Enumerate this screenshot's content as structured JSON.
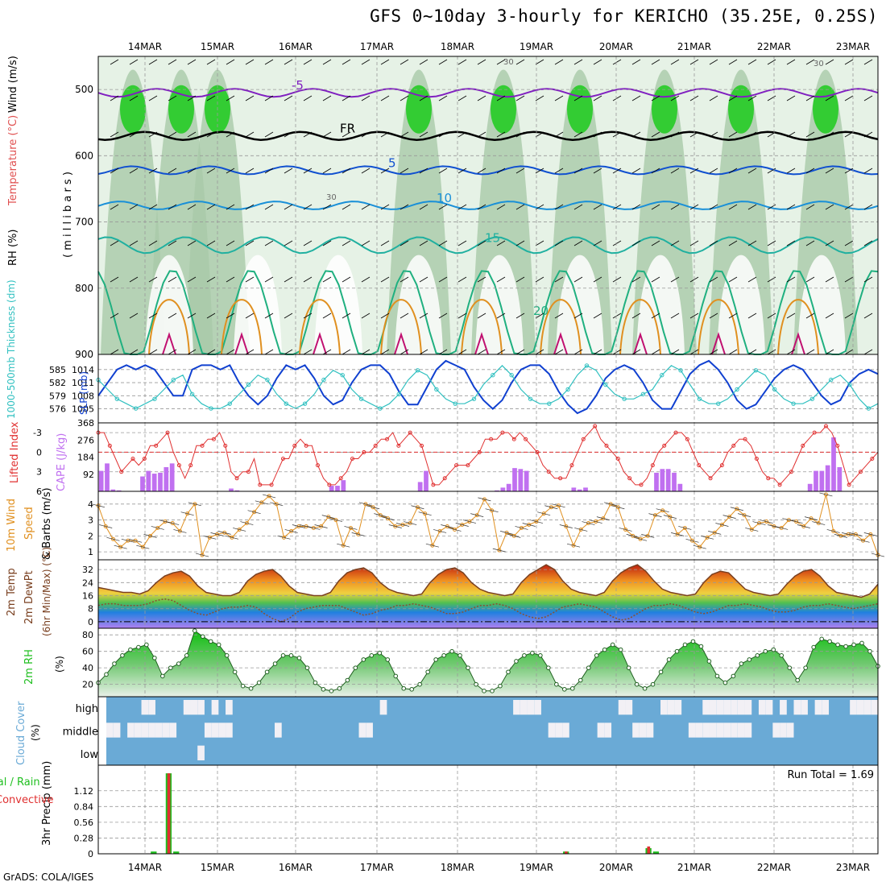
{
  "title": "GFS 0~10day 3-hourly for KERICHO (35.25E, 0.25S)",
  "footer": "GrADS: COLA/IGES",
  "dates": [
    "14MAR",
    "15MAR",
    "16MAR",
    "17MAR",
    "18MAR",
    "19MAR",
    "20MAR",
    "21MAR",
    "22MAR",
    "23MAR"
  ],
  "colors": {
    "rh": "#1fbf1f",
    "temp": "#e05050",
    "cloud": "#6aaad6",
    "precip_total": "#1fbf1f",
    "precip_conv": "#e03030",
    "cape": "#c070f0",
    "li": "#e03030",
    "slp": "#1040d0",
    "thick": "#30c0c0",
    "wind": "#e09020"
  },
  "chart_data": [
    {
      "type": "contour",
      "name": "upper-air",
      "ylabel_parts": [
        "RH (%)",
        "Temperature (°C)",
        "Wind (m/s)"
      ],
      "ylabel_right": "( m i l l i b a r s )",
      "yticks": [
        500,
        600,
        700,
        800,
        900
      ],
      "ylim": [
        450,
        900
      ],
      "temperature_contours": [
        {
          "label": "-5",
          "level_mb": 505
        },
        {
          "label": "FR",
          "level_mb": 570
        },
        {
          "label": "5",
          "level_mb": 622
        },
        {
          "label": "10",
          "level_mb": 675
        },
        {
          "label": "15",
          "level_mb": 735
        },
        {
          "label": "20",
          "level_mb": 845
        }
      ],
      "rh_labels": [
        "30",
        "30",
        "30"
      ]
    },
    {
      "type": "line",
      "name": "thickness-slp",
      "ylabel_left": "1000-500mb Thickness (dm)",
      "ylabel_right": "SLP (mb)",
      "yticks_left": [
        585,
        582,
        579,
        576
      ],
      "yticks_right": [
        1014,
        1011,
        1008,
        1005
      ],
      "series": [
        {
          "name": "SLP",
          "values": [
            1008,
            1011,
            1014,
            1015,
            1014,
            1015,
            1014,
            1011,
            1008,
            1008,
            1014,
            1015,
            1015,
            1014,
            1015,
            1011,
            1008,
            1006,
            1008,
            1012,
            1015,
            1014,
            1015,
            1012,
            1008,
            1006,
            1007,
            1011,
            1014,
            1015,
            1015,
            1013,
            1009,
            1006,
            1006,
            1010,
            1014,
            1016,
            1015,
            1014,
            1010,
            1007,
            1005,
            1007,
            1011,
            1014,
            1015,
            1015,
            1013,
            1009,
            1006,
            1004,
            1005,
            1008,
            1012,
            1014,
            1015,
            1014,
            1011,
            1007,
            1005,
            1005,
            1009,
            1013,
            1015,
            1016,
            1014,
            1011,
            1007,
            1005,
            1006,
            1009,
            1012,
            1014,
            1015,
            1014,
            1011,
            1008,
            1006,
            1007,
            1011,
            1013,
            1014,
            1013
          ]
        },
        {
          "name": "Thickness",
          "values": [
            582,
            580,
            578,
            577,
            576,
            577,
            578,
            580,
            582,
            583,
            579,
            577,
            576,
            576,
            577,
            579,
            581,
            583,
            582,
            579,
            577,
            576,
            577,
            579,
            582,
            584,
            583,
            580,
            578,
            577,
            576,
            577,
            579,
            582,
            584,
            583,
            580,
            578,
            577,
            577,
            578,
            581,
            583,
            585,
            583,
            580,
            578,
            577,
            577,
            578,
            580,
            583,
            585,
            584,
            581,
            579,
            578,
            578,
            579,
            580,
            583,
            585,
            584,
            581,
            578,
            577,
            577,
            578,
            580,
            582,
            584,
            583,
            580,
            578,
            577,
            577,
            578,
            580,
            582,
            583,
            581,
            578,
            576,
            577
          ]
        }
      ]
    },
    {
      "type": "bar",
      "name": "lifted-index-cape",
      "ylabel_left": "Lifted Index",
      "ylabel_right": "CAPE (J/kg)",
      "yticks_left": [
        -3,
        0,
        3,
        6
      ],
      "yticks_right": [
        368,
        276,
        184,
        92
      ],
      "cape": [
        110,
        150,
        10,
        5,
        0,
        0,
        0,
        80,
        110,
        95,
        100,
        130,
        150,
        0,
        0,
        0,
        0,
        0,
        0,
        0,
        0,
        0,
        15,
        5,
        0,
        0,
        0,
        0,
        0,
        0,
        0,
        0,
        0,
        0,
        0,
        0,
        0,
        0,
        0,
        30,
        30,
        60,
        0,
        0,
        0,
        0,
        0,
        0,
        0,
        0,
        0,
        0,
        0,
        0,
        50,
        110,
        0,
        0,
        0,
        0,
        0,
        0,
        0,
        0,
        0,
        0,
        0,
        5,
        20,
        40,
        125,
        120,
        110,
        0,
        0,
        0,
        0,
        0,
        0,
        0,
        20,
        10,
        20,
        0,
        0,
        0,
        0,
        0,
        0,
        0,
        0,
        0,
        0,
        0,
        100,
        120,
        120,
        100,
        40,
        0,
        0,
        0,
        0,
        0,
        0,
        0,
        0,
        0,
        0,
        0,
        0,
        0,
        0,
        0,
        0,
        0,
        0,
        0,
        0,
        0,
        40,
        110,
        110,
        140,
        290,
        130,
        0,
        0,
        0,
        0,
        0,
        0
      ],
      "lifted_index": [
        -3,
        -3,
        -1,
        1,
        3,
        2,
        1,
        2,
        1,
        -1,
        -1,
        -2,
        -3,
        0,
        2,
        4,
        2,
        -1,
        -1,
        -2,
        -2,
        -3,
        -1,
        3,
        4,
        3,
        3,
        1,
        5,
        5,
        5,
        3,
        1,
        1,
        -1,
        -2,
        -1,
        -1,
        2,
        4,
        5,
        5,
        4,
        3,
        1,
        1,
        0,
        0,
        -1,
        -2,
        -2,
        -3,
        -1,
        -2,
        -3,
        -2,
        -1,
        2,
        5,
        5,
        4,
        3,
        2,
        2,
        2,
        1,
        0,
        -2,
        -2,
        -2,
        -3,
        -3,
        -2,
        -3,
        -2,
        -1,
        0,
        2,
        3,
        4,
        4,
        4,
        2,
        0,
        -2,
        -3,
        -4,
        -2,
        -1,
        0,
        1,
        3,
        4,
        5,
        5,
        4,
        2,
        0,
        -1,
        -2,
        -3,
        -3,
        -2,
        0,
        2,
        3,
        4,
        3,
        2,
        0,
        -1,
        -2,
        -2,
        -1,
        1,
        3,
        4,
        4,
        5,
        4,
        3,
        1,
        -1,
        -2,
        -3,
        -3,
        -4,
        -3,
        -1,
        2,
        5,
        4,
        3,
        2,
        1,
        0
      ]
    },
    {
      "type": "line",
      "name": "10m-wind",
      "ylabel_parts": [
        "10m Wind",
        "Speed",
        "& Barbs (m/s)"
      ],
      "yticks": [
        1,
        2,
        3,
        4
      ],
      "ylim": [
        0.5,
        4.8
      ],
      "values": [
        3.9,
        2.6,
        1.8,
        1.3,
        1.7,
        1.7,
        1.3,
        2.0,
        2.5,
        2.9,
        2.8,
        2.3,
        3.4,
        4.0,
        0.8,
        1.9,
        2.1,
        2.2,
        1.9,
        2.4,
        2.8,
        3.5,
        4.1,
        4.5,
        4.0,
        1.9,
        2.3,
        2.6,
        2.6,
        2.5,
        2.6,
        3.2,
        3.0,
        1.4,
        2.5,
        2.1,
        4.0,
        3.8,
        3.3,
        3.1,
        2.6,
        2.7,
        2.8,
        3.8,
        3.4,
        1.4,
        2.3,
        2.6,
        2.4,
        2.7,
        2.9,
        3.3,
        4.3,
        3.6,
        1.1,
        2.2,
        2.0,
        2.5,
        2.7,
        2.9,
        3.4,
        3.8,
        3.9,
        2.6,
        1.4,
        2.4,
        2.8,
        2.9,
        3.1,
        4.0,
        3.8,
        2.4,
        2.0,
        1.8,
        2.0,
        3.3,
        3.6,
        3.2,
        2.1,
        2.5,
        1.7,
        1.3,
        1.9,
        2.2,
        2.7,
        3.2,
        3.7,
        3.3,
        2.4,
        2.8,
        2.9,
        2.6,
        2.5,
        3.0,
        2.9,
        2.6,
        3.1,
        2.8,
        4.6,
        2.3,
        2.0,
        2.1,
        2.1,
        1.7,
        2.1,
        0.8
      ]
    },
    {
      "type": "area",
      "name": "2m-temp-dewpt",
      "ylabel_parts": [
        "2m Temp",
        "2m DewPt",
        "(6hr Min/Max) (°C)"
      ],
      "yticks": [
        0,
        8,
        16,
        24,
        32
      ],
      "ylim": [
        -4,
        38
      ],
      "temp": [
        21,
        20,
        19,
        18,
        18,
        17,
        19,
        24,
        28,
        30,
        31,
        28,
        22,
        18,
        17,
        16,
        16,
        18,
        25,
        29,
        31,
        32,
        28,
        22,
        18,
        17,
        16,
        16,
        18,
        25,
        30,
        32,
        33,
        30,
        24,
        20,
        18,
        17,
        16,
        17,
        24,
        29,
        32,
        33,
        30,
        24,
        20,
        18,
        17,
        16,
        17,
        24,
        29,
        32,
        35,
        32,
        25,
        20,
        18,
        17,
        16,
        18,
        25,
        30,
        33,
        35,
        31,
        25,
        20,
        18,
        17,
        16,
        17,
        24,
        29,
        31,
        30,
        25,
        20,
        18,
        17,
        16,
        17,
        23,
        28,
        31,
        32,
        28,
        22,
        18,
        17,
        16,
        15,
        17,
        23
      ],
      "dewpoint": [
        10,
        11,
        11,
        10,
        10,
        10,
        11,
        13,
        14,
        13,
        10,
        7,
        5,
        4,
        6,
        8,
        9,
        9,
        10,
        9,
        5,
        2,
        0,
        2,
        6,
        8,
        9,
        10,
        10,
        10,
        8,
        6,
        4,
        5,
        7,
        8,
        10,
        10,
        11,
        10,
        9,
        7,
        5,
        5,
        6,
        8,
        10,
        10,
        11,
        10,
        8,
        5,
        3,
        2,
        3,
        6,
        9,
        10,
        11,
        10,
        9,
        6,
        3,
        1,
        2,
        5,
        8,
        10,
        10,
        11,
        10,
        8,
        6,
        5,
        6,
        8,
        10,
        10,
        11,
        10,
        9,
        7,
        6,
        6,
        7,
        9,
        10,
        10,
        11,
        10,
        9,
        8,
        9,
        10,
        11
      ],
      "zero_line": 0
    },
    {
      "type": "area",
      "name": "2m-rh",
      "ylabel_parts": [
        "2m RH",
        "(%)"
      ],
      "yticks": [
        20,
        40,
        60,
        80
      ],
      "ylim": [
        5,
        88
      ],
      "values": [
        22,
        32,
        45,
        55,
        62,
        65,
        68,
        52,
        30,
        40,
        45,
        55,
        85,
        78,
        72,
        68,
        55,
        35,
        18,
        15,
        22,
        35,
        45,
        55,
        55,
        52,
        40,
        22,
        14,
        12,
        15,
        25,
        40,
        50,
        55,
        58,
        50,
        30,
        15,
        14,
        20,
        35,
        50,
        55,
        60,
        55,
        40,
        20,
        12,
        12,
        18,
        35,
        48,
        55,
        58,
        55,
        40,
        20,
        14,
        15,
        25,
        40,
        55,
        62,
        68,
        62,
        40,
        20,
        15,
        20,
        35,
        50,
        60,
        68,
        72,
        66,
        48,
        30,
        22,
        30,
        45,
        50,
        55,
        60,
        62,
        55,
        40,
        25,
        40,
        65,
        75,
        72,
        68,
        66,
        68,
        70,
        60,
        42
      ]
    },
    {
      "type": "heatmap",
      "name": "cloud-cover",
      "ylabel_parts": [
        "Cloud Cover",
        "(%)"
      ],
      "layers": [
        "high",
        "middle",
        "low"
      ],
      "high": [
        0,
        0,
        0,
        0,
        0,
        1,
        1,
        0,
        0,
        0,
        0,
        1,
        1,
        1,
        0,
        1,
        0,
        1,
        0,
        0,
        0,
        0,
        0,
        0,
        0,
        0,
        0,
        0,
        0,
        0,
        0,
        0,
        0,
        0,
        0,
        0,
        0,
        0,
        0,
        1,
        0,
        0,
        0,
        0,
        0,
        0,
        0,
        0,
        0,
        0,
        0,
        0,
        0,
        0,
        0,
        0,
        0,
        0,
        1,
        1,
        1,
        1,
        0,
        0,
        0,
        0,
        0,
        0,
        0,
        0,
        0,
        0,
        0,
        1,
        1,
        0,
        0,
        0,
        0,
        1,
        1,
        1,
        0,
        0,
        0,
        1,
        1,
        1,
        1,
        1,
        1,
        1,
        0,
        1,
        1,
        0,
        1,
        0,
        1,
        1,
        0,
        1,
        1,
        0,
        0,
        0,
        1,
        1,
        1,
        1
      ],
      "middle": [
        1,
        1,
        0,
        1,
        1,
        1,
        1,
        1,
        1,
        1,
        0,
        0,
        0,
        0,
        1,
        1,
        1,
        1,
        0,
        0,
        0,
        0,
        0,
        0,
        1,
        0,
        0,
        0,
        0,
        0,
        0,
        0,
        0,
        0,
        0,
        0,
        1,
        1,
        0,
        0,
        0,
        0,
        0,
        0,
        0,
        0,
        0,
        0,
        0,
        0,
        0,
        0,
        0,
        0,
        0,
        0,
        0,
        0,
        0,
        0,
        0,
        0,
        0,
        1,
        1,
        1,
        0,
        0,
        0,
        0,
        1,
        1,
        0,
        0,
        0,
        1,
        1,
        1,
        0,
        0,
        0,
        0,
        0,
        1,
        1,
        1,
        1,
        1,
        1,
        1,
        1,
        1,
        0,
        0,
        0,
        1,
        1,
        1,
        0,
        0,
        0,
        0,
        0,
        0,
        0,
        0,
        0,
        0,
        0,
        0
      ],
      "low": [
        0,
        0,
        0,
        0,
        0,
        0,
        0,
        0,
        0,
        0,
        0,
        0,
        0,
        1,
        0,
        0,
        0,
        0,
        0,
        0,
        0,
        0,
        0,
        0,
        0,
        0,
        0,
        0,
        0,
        0,
        0,
        0,
        0,
        0,
        0,
        0,
        0,
        0,
        0,
        0,
        0,
        0,
        0,
        0,
        0,
        0,
        0,
        0,
        0,
        0,
        0,
        0,
        0,
        0,
        0,
        0,
        0,
        0,
        0,
        0,
        0,
        0,
        0,
        0,
        0,
        0,
        0,
        0,
        0,
        0,
        0,
        0,
        0,
        0,
        0,
        0,
        0,
        0,
        0,
        0,
        0,
        0,
        0,
        0,
        0,
        0,
        0,
        0,
        0,
        0,
        0,
        0,
        0,
        0,
        0,
        0,
        0,
        0,
        0,
        0,
        0,
        0,
        0,
        0,
        0,
        0,
        0,
        0,
        0,
        0
      ]
    },
    {
      "type": "bar",
      "name": "precipitation",
      "ylabel_left": "3hr Precip (mm)",
      "ylabel_outer": [
        "Total / Rain",
        "Convective"
      ],
      "yticks": [
        0,
        0.28,
        0.56,
        0.84,
        1.12
      ],
      "ylim": [
        0,
        1.46
      ],
      "run_total_label": "Run Total = 1.69",
      "bars": [
        {
          "t": 7,
          "total": 0.04,
          "conv": 0
        },
        {
          "t": 9,
          "total": 1.43,
          "conv": 1.43
        },
        {
          "t": 10,
          "total": 0.04,
          "conv": 0
        },
        {
          "t": 62,
          "total": 0.04,
          "conv": 0.04
        },
        {
          "t": 73,
          "total": 0.1,
          "conv": 0.13
        },
        {
          "t": 74,
          "total": 0.04,
          "conv": 0
        }
      ]
    }
  ]
}
